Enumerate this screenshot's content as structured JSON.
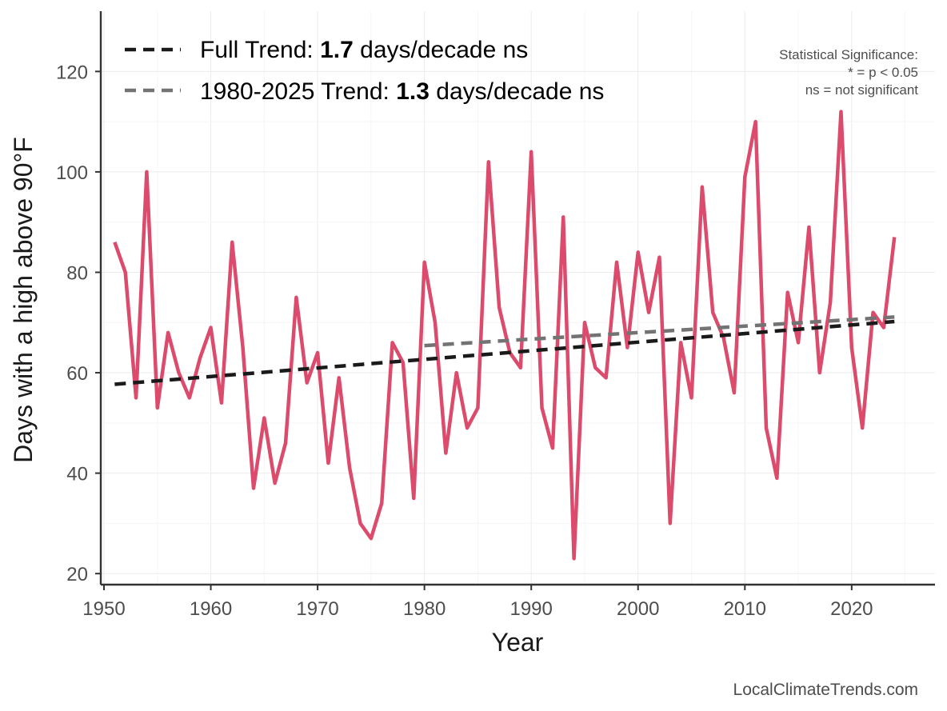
{
  "chart_data": {
    "type": "line",
    "title": "",
    "xlabel": "Year",
    "ylabel": "Days with a high above 90°F",
    "xlim": [
      1949.7,
      2027.8
    ],
    "ylim": [
      17.8,
      132
    ],
    "x_ticks": [
      1950,
      1960,
      1970,
      1980,
      1990,
      2000,
      2010,
      2020
    ],
    "y_ticks": [
      20,
      40,
      60,
      80,
      100,
      120
    ],
    "grid": true,
    "series": [
      {
        "name": "Days with a high above 90°F",
        "color": "#dc4b6c",
        "x": [
          1951,
          1952,
          1953,
          1954,
          1955,
          1956,
          1957,
          1958,
          1959,
          1960,
          1961,
          1962,
          1963,
          1964,
          1965,
          1966,
          1967,
          1968,
          1969,
          1970,
          1971,
          1972,
          1973,
          1974,
          1975,
          1976,
          1977,
          1978,
          1979,
          1980,
          1981,
          1982,
          1983,
          1984,
          1985,
          1986,
          1987,
          1988,
          1989,
          1990,
          1991,
          1992,
          1993,
          1994,
          1995,
          1996,
          1997,
          1998,
          1999,
          2000,
          2001,
          2002,
          2003,
          2004,
          2005,
          2006,
          2007,
          2008,
          2009,
          2010,
          2011,
          2012,
          2013,
          2014,
          2015,
          2016,
          2017,
          2018,
          2019,
          2020,
          2021,
          2022,
          2023,
          2024
        ],
        "values": [
          86,
          80,
          55,
          100,
          53,
          68,
          60,
          55,
          63,
          69,
          54,
          86,
          65,
          37,
          51,
          38,
          46,
          75,
          58,
          64,
          42,
          59,
          41,
          30,
          27,
          34,
          66,
          62,
          35,
          82,
          70,
          44,
          60,
          49,
          53,
          102,
          73,
          64,
          61,
          104,
          53,
          45,
          91,
          23,
          70,
          61,
          59,
          82,
          65,
          84,
          72,
          83,
          30,
          66,
          55,
          97,
          72,
          67,
          56,
          99,
          110,
          49,
          39,
          76,
          66,
          89,
          60,
          74,
          112,
          65,
          49,
          72,
          69,
          87
        ]
      }
    ],
    "trends": [
      {
        "label": "Full Trend:",
        "value": "1.7",
        "suffix": "days/decade ns",
        "color": "#1a1a1a",
        "start": [
          1951,
          57.7
        ],
        "end": [
          2024,
          70.2
        ]
      },
      {
        "label": "1980-2025 Trend:",
        "value": "1.3",
        "suffix": "days/decade ns",
        "color": "#737373",
        "start": [
          1980,
          65.4
        ],
        "end": [
          2024,
          71.1
        ]
      }
    ],
    "legend_position": "top-left",
    "annotations": {
      "significance_title": "Statistical Significance:",
      "significance_p": "* = p < 0.05",
      "significance_ns": "ns = not significant",
      "source": "LocalClimateTrends.com"
    }
  }
}
